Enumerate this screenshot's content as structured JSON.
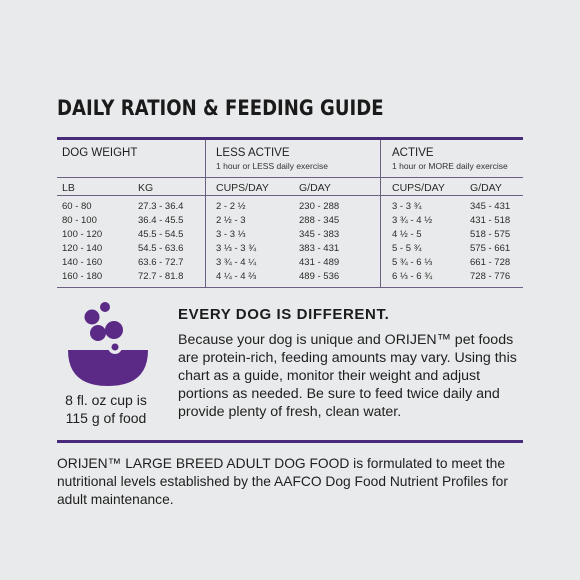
{
  "title": "DAILY RATION & FEEDING GUIDE",
  "table": {
    "dog_weight_header": "DOG WEIGHT",
    "less_active": {
      "header": "LESS ACTIVE",
      "sub": "1 hour or LESS daily exercise"
    },
    "active": {
      "header": "ACTIVE",
      "sub": "1 hour or MORE daily exercise"
    },
    "col_lb": "LB",
    "col_kg": "KG",
    "col_cups_less": "CUPS/DAY",
    "col_g_less": "G/DAY",
    "col_cups_active": "CUPS/DAY",
    "col_g_active": "G/DAY",
    "rows": [
      {
        "lb": "60 - 80",
        "kg": "27.3 - 36.4",
        "cups_less": "2 - 2 ½",
        "g_less": "230 - 288",
        "cups_active": "3 - 3 ¾",
        "g_active": "345 - 431"
      },
      {
        "lb": "80 - 100",
        "kg": "36.4 - 45.5",
        "cups_less": "2 ½ - 3",
        "g_less": "288 - 345",
        "cups_active": "3 ¾ - 4 ½",
        "g_active": "431 - 518"
      },
      {
        "lb": "100 - 120",
        "kg": "45.5 - 54.5",
        "cups_less": "3 - 3 ⅓",
        "g_less": "345 - 383",
        "cups_active": "4 ½ - 5",
        "g_active": "518 - 575"
      },
      {
        "lb": "120 - 140",
        "kg": "54.5 - 63.6",
        "cups_less": "3 ⅓ - 3 ¾",
        "g_less": "383 - 431",
        "cups_active": "5 - 5 ¾",
        "g_active": "575 - 661"
      },
      {
        "lb": "140 - 160",
        "kg": "63.6 - 72.7",
        "cups_less": "3 ¾ - 4 ¼",
        "g_less": "431 - 489",
        "cups_active": "5 ¾ - 6 ⅓",
        "g_active": "661 - 728"
      },
      {
        "lb": "160 - 180",
        "kg": "72.7 - 81.8",
        "cups_less": "4 ¼ - 4 ⅔",
        "g_less": "489 - 536",
        "cups_active": "6 ⅓ - 6 ¾",
        "g_active": "728 - 776"
      }
    ]
  },
  "cup": {
    "icon": "food-bowl-icon",
    "caption_line1": "8 fl. oz cup is",
    "caption_line2": "115 g of food",
    "color": "#5b2a86"
  },
  "different": {
    "title": "EVERY DOG IS DIFFERENT.",
    "body": "Because your dog is unique and ORIJEN™ pet foods are protein-rich, feeding amounts may vary. Using this chart as a guide, monitor their weight and adjust portions as needed. Be sure to feed twice daily and provide plenty of fresh, clean water."
  },
  "footer": "ORIJEN™ LARGE BREED ADULT DOG FOOD is formulated to meet the nutritional levels established by the AAFCO Dog Food Nutrient Profiles for adult maintenance.",
  "colors": {
    "accent": "#4a2a7a",
    "background": "#e9eaeb"
  }
}
